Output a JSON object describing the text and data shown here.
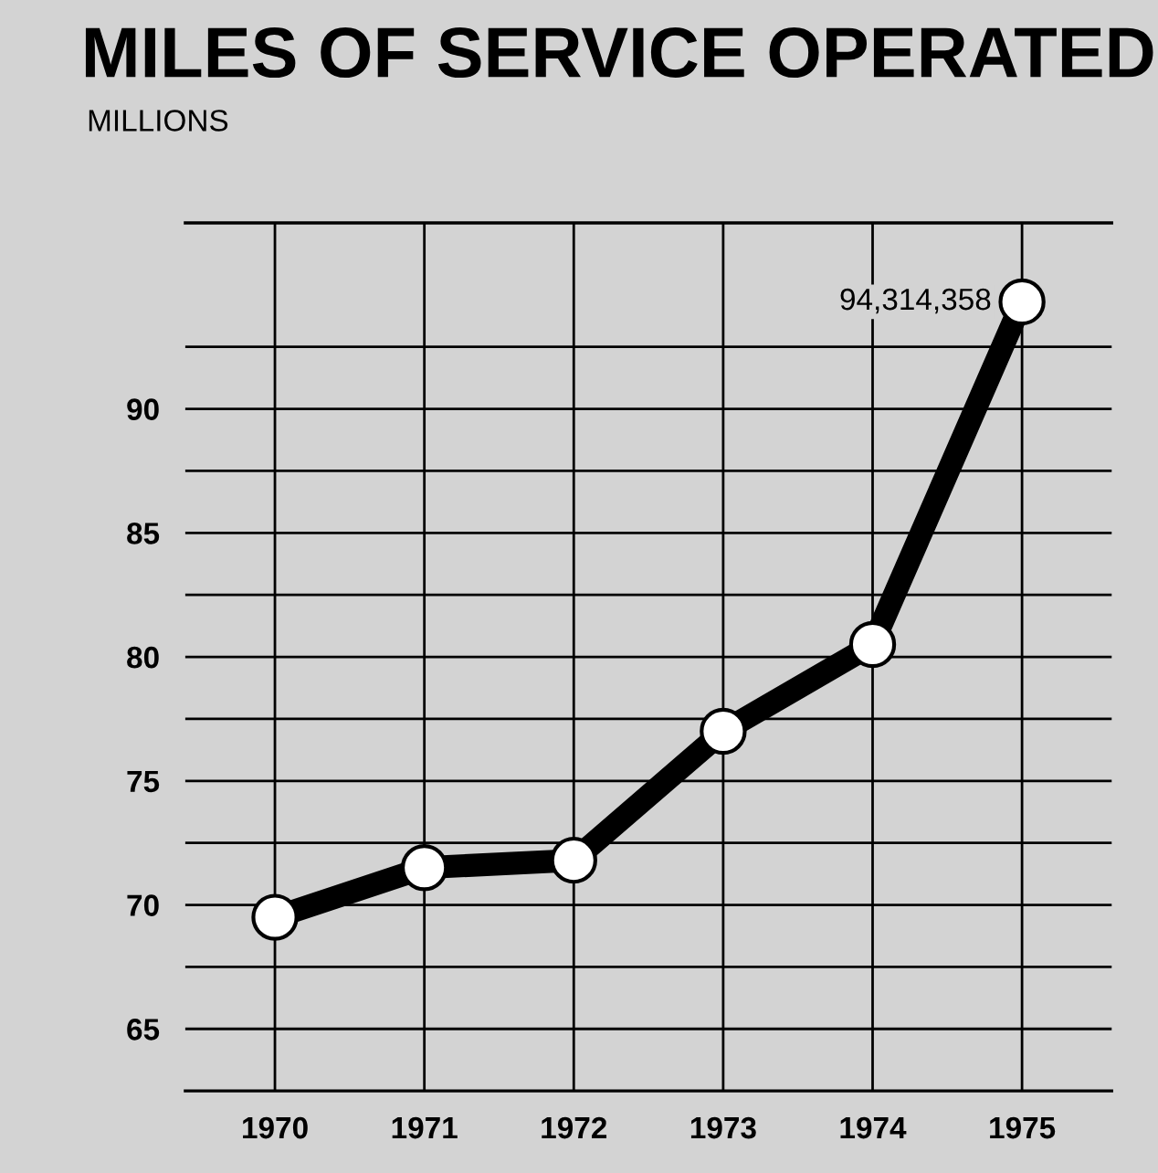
{
  "chart_data": {
    "type": "line",
    "title": "MILES OF SERVICE OPERATED",
    "ylabel": "MILLIONS",
    "categories": [
      "1970",
      "1971",
      "1972",
      "1973",
      "1974",
      "1975"
    ],
    "series": [
      {
        "color": "#000000",
        "values": [
          69.5,
          71.5,
          71.8,
          77,
          80.5,
          94.314358
        ]
      }
    ],
    "ylim": [
      62.5,
      97.5
    ],
    "yticks": [
      65,
      70,
      75,
      80,
      85,
      90,
      {
        "value": 67.5,
        "label": null
      },
      {
        "value": 72.5,
        "label": null
      },
      {
        "value": 77.5,
        "label": null
      },
      {
        "value": 82.5,
        "label": null
      },
      {
        "value": 87.5,
        "label": null
      },
      {
        "value": 92.5,
        "label": null
      }
    ],
    "annotations": [
      {
        "text": "94,314,358",
        "x": "1975",
        "y": 94.314358
      }
    ],
    "grid": true,
    "marker": "circle",
    "line_style": "solid",
    "legend": false
  }
}
